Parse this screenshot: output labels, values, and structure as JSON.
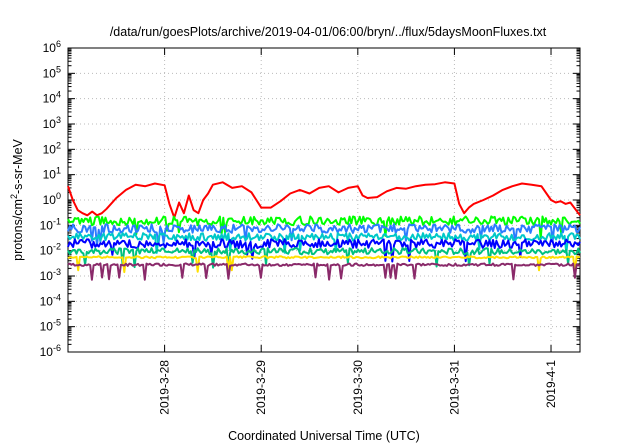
{
  "chart_data": {
    "type": "line",
    "title": "/data/run/goesPlots/archive/2019-04-01/06:00/bryn/../flux/5daysMoonFluxes.txt",
    "xlabel": "Coordinated Universal Time (UTC)",
    "ylabel": {
      "prefix": "protons/cm",
      "sup": "2",
      "suffix": "-s-sr-MeV"
    },
    "yscale": "log",
    "ylim": [
      -6,
      6
    ],
    "xlim": [
      0,
      5.3
    ],
    "grid": true,
    "legend": "none",
    "x_ticks": [
      {
        "x": 1.0,
        "label": "2019-3-28"
      },
      {
        "x": 2.0,
        "label": "2019-3-29"
      },
      {
        "x": 3.0,
        "label": "2019-3-30"
      },
      {
        "x": 4.0,
        "label": "2019-3-31"
      },
      {
        "x": 5.0,
        "label": "2019-4-1"
      }
    ],
    "y_ticks": [
      {
        "exp": 6,
        "base": "10",
        "sup": "6"
      },
      {
        "exp": 5,
        "base": "10",
        "sup": "5"
      },
      {
        "exp": 4,
        "base": "10",
        "sup": "4"
      },
      {
        "exp": 3,
        "base": "10",
        "sup": "3"
      },
      {
        "exp": 2,
        "base": "10",
        "sup": "2"
      },
      {
        "exp": 1,
        "base": "10",
        "sup": "1"
      },
      {
        "exp": 0,
        "base": "10",
        "sup": "0"
      },
      {
        "exp": -1,
        "base": "10",
        "sup": "-1"
      },
      {
        "exp": -2,
        "base": "10",
        "sup": "-2"
      },
      {
        "exp": -3,
        "base": "10",
        "sup": "-3"
      },
      {
        "exp": -4,
        "base": "10",
        "sup": "-4"
      },
      {
        "exp": -5,
        "base": "10",
        "sup": "-5"
      },
      {
        "exp": -6,
        "base": "10",
        "sup": "-6"
      }
    ],
    "series": [
      {
        "color": "#ff0000",
        "x": [
          0.0,
          0.05,
          0.1,
          0.15,
          0.2,
          0.25,
          0.3,
          0.35,
          0.4,
          0.5,
          0.6,
          0.7,
          0.8,
          0.9,
          1.0,
          1.05,
          1.1,
          1.15,
          1.2,
          1.25,
          1.3,
          1.35,
          1.4,
          1.45,
          1.5,
          1.6,
          1.7,
          1.8,
          1.9,
          2.0,
          2.05,
          2.1,
          2.2,
          2.3,
          2.4,
          2.5,
          2.6,
          2.7,
          2.8,
          2.9,
          3.0,
          3.05,
          3.1,
          3.2,
          3.3,
          3.4,
          3.5,
          3.6,
          3.7,
          3.8,
          3.9,
          4.0,
          4.05,
          4.1,
          4.15,
          4.2,
          4.3,
          4.4,
          4.5,
          4.6,
          4.7,
          4.8,
          4.9,
          5.0,
          5.05,
          5.1,
          5.15,
          5.2,
          5.3
        ],
        "y": [
          3.5,
          1.0,
          0.4,
          0.3,
          0.25,
          0.35,
          0.25,
          0.3,
          0.45,
          1.2,
          2.5,
          4.0,
          3.5,
          4.5,
          3.8,
          0.7,
          0.2,
          0.8,
          0.3,
          1.5,
          0.4,
          0.3,
          1.0,
          1.8,
          4.0,
          5.0,
          3.0,
          3.5,
          2.0,
          0.5,
          0.5,
          0.5,
          0.9,
          1.8,
          2.5,
          1.8,
          3.0,
          3.5,
          2.0,
          3.0,
          3.5,
          1.5,
          1.2,
          1.3,
          2.2,
          3.0,
          2.8,
          3.5,
          4.0,
          4.2,
          5.0,
          4.5,
          0.7,
          0.3,
          0.5,
          0.7,
          1.0,
          1.5,
          2.5,
          3.5,
          4.5,
          4.0,
          3.5,
          1.0,
          0.8,
          0.9,
          0.7,
          0.8,
          0.25
        ]
      },
      {
        "color": "#00ff00",
        "x": [
          0.0,
          5.3
        ],
        "y": [
          0.15,
          0.15
        ],
        "noise": 0.35
      },
      {
        "color": "#2b7cff",
        "x": [
          0.0,
          5.3
        ],
        "y": [
          0.075,
          0.075
        ],
        "noise": 0.35
      },
      {
        "color": "#00c8c8",
        "x": [
          0.0,
          5.3
        ],
        "y": [
          0.035,
          0.035
        ],
        "noise": 0.3
      },
      {
        "color": "#0000ff",
        "x": [
          0.0,
          5.3
        ],
        "y": [
          0.019,
          0.019
        ],
        "noise": 0.35
      },
      {
        "color": "#00c080",
        "x": [
          0.0,
          5.3
        ],
        "y": [
          0.0095,
          0.0095
        ],
        "noise": 0.25
      },
      {
        "color": "#ffe000",
        "x": [
          0.0,
          5.3
        ],
        "y": [
          0.0055,
          0.0055
        ],
        "noise": 0.08
      },
      {
        "color": "#8a2a6a",
        "x": [
          0.0,
          5.3
        ],
        "y": [
          0.0028,
          0.0028
        ],
        "noise": 0.1
      }
    ]
  }
}
